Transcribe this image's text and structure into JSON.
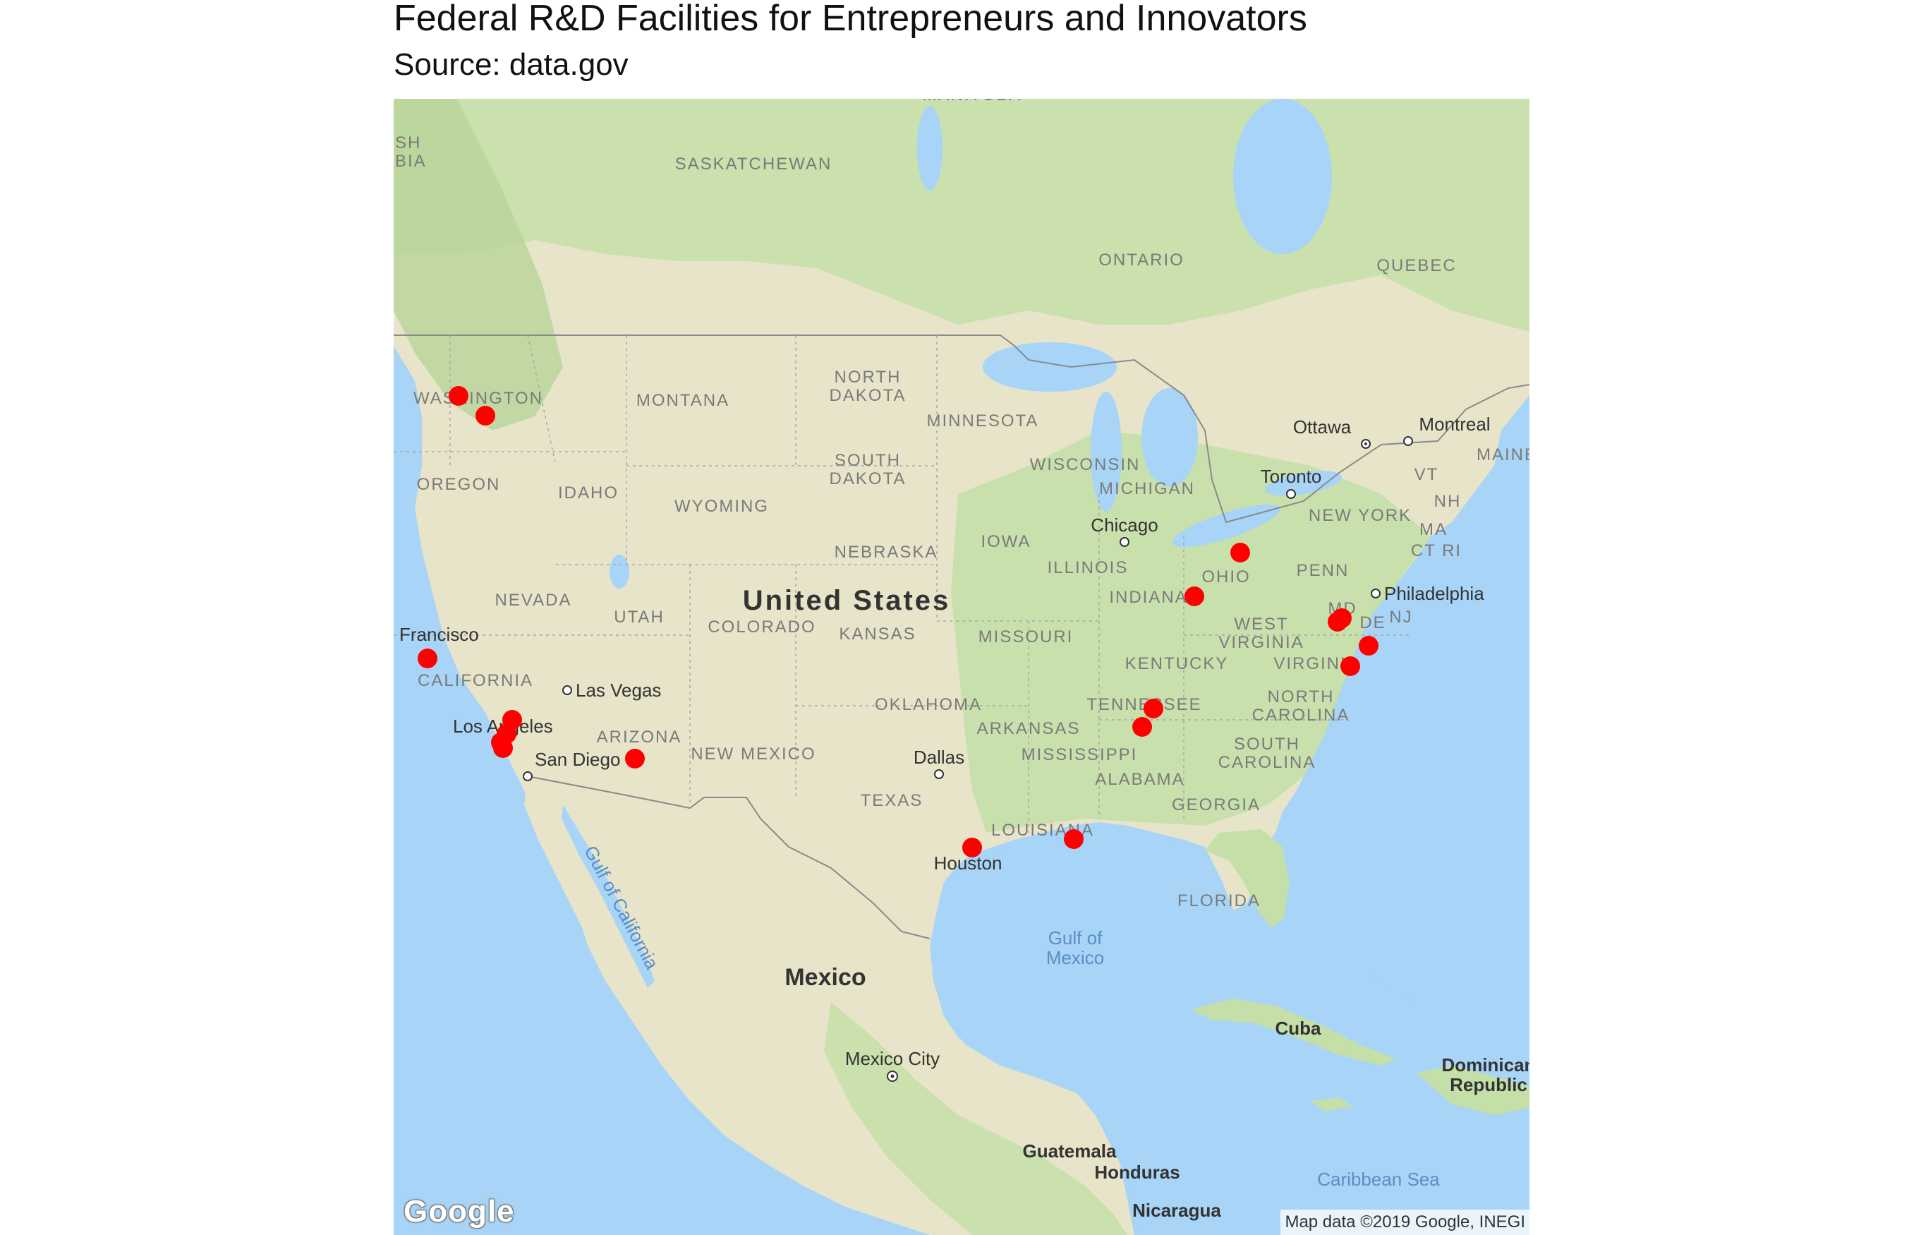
{
  "title": "Federal R&D Facilities for Entrepreneurs and Innovators",
  "subtitle": "Source: data.gov",
  "map": {
    "logo": "Google",
    "attribution": "Map data ©2019 Google, INEGI",
    "colors": {
      "water": "#a7d4f7",
      "land": "#e8e4c9",
      "forest": "#c4dfa8",
      "marker": "#ff0000",
      "border": "#8a8a8a"
    },
    "labels": {
      "manitoba": "MANITOBA",
      "bc": "SH\nBIA",
      "saskatchewan": "SASKATCHEWAN",
      "ontario": "ONTARIO",
      "quebec": "QUEBEC",
      "washington": "WASHINGTON",
      "montana": "MONTANA",
      "north_dakota": "NORTH\nDAKOTA",
      "minnesota": "MINNESOTA",
      "south_dakota": "SOUTH\nDAKOTA",
      "wisconsin": "WISCONSIN",
      "michigan": "MICHIGAN",
      "oregon": "OREGON",
      "idaho": "IDAHO",
      "wyoming": "WYOMING",
      "iowa": "IOWA",
      "nebraska": "NEBRASKA",
      "illinois": "ILLINOIS",
      "ohio": "OHIO",
      "penn": "PENN",
      "new_york": "NEW YORK",
      "vt": "VT",
      "maine": "MAINE",
      "nh": "NH",
      "ma": "MA",
      "ct_ri": "CT RI",
      "nevada": "NEVADA",
      "utah": "UTAH",
      "colorado": "COLORADO",
      "kansas": "KANSAS",
      "missouri": "MISSOURI",
      "indiana": "INDIANA",
      "west_virginia": "WEST\nVIRGINIA",
      "md": "MD",
      "de": "DE",
      "nj": "NJ",
      "california": "CALIFORNIA",
      "kentucky": "KENTUCKY",
      "virginia": "VIRGINIA",
      "oklahoma": "OKLAHOMA",
      "tennessee": "TENNESSEE",
      "north_carolina": "NORTH\nCAROLINA",
      "arkansas": "ARKANSAS",
      "arizona": "ARIZONA",
      "new_mexico": "NEW MEXICO",
      "mississippi": "MISSISSIPPI",
      "alabama": "ALABAMA",
      "south_carolina": "SOUTH\nCAROLINA",
      "georgia": "GEORGIA",
      "texas": "TEXAS",
      "louisiana": "LOUISIANA",
      "florida": "FLORIDA",
      "united_states": "United States",
      "mexico": "Mexico",
      "cuba": "Cuba",
      "dominican": "Dominican\nRepublic",
      "guatemala": "Guatemala",
      "honduras": "Honduras",
      "nicaragua": "Nicaragua",
      "gulf_mexico": "Gulf of\nMexico",
      "gulf_california": "Gulf of California",
      "caribbean": "Caribbean Sea",
      "ottawa": "Ottawa",
      "montreal": "Montreal",
      "toronto": "Toronto",
      "chicago": "Chicago",
      "philadelphia": "Philadelphia",
      "san_francisco": "Francisco",
      "las_vegas": "Las Vegas",
      "los_angeles": "Los Angeles",
      "san_diego": "San Diego",
      "dallas": "Dallas",
      "houston": "Houston",
      "mexico_city": "Mexico City"
    }
  }
}
